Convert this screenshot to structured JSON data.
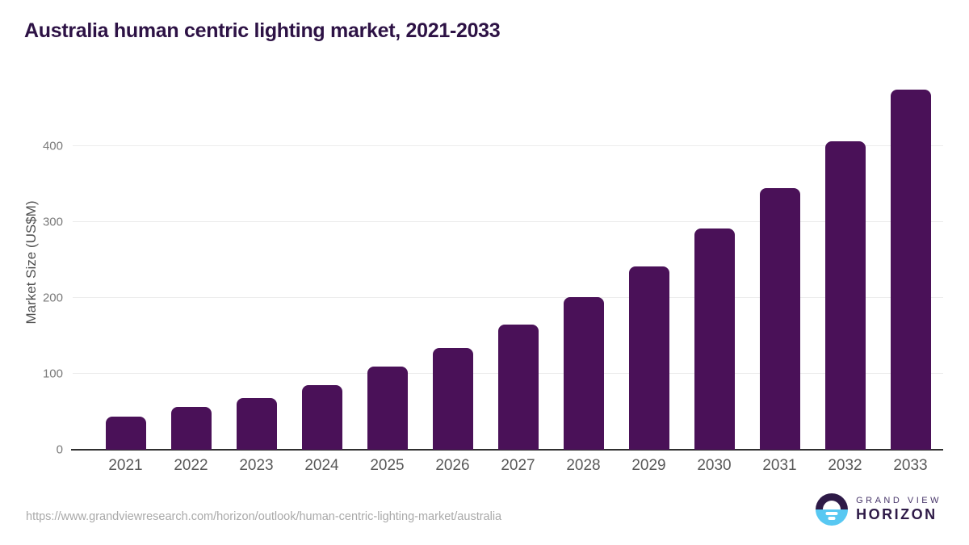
{
  "page": {
    "title": "Australia human centric lighting market, 2021-2033",
    "source_url": "https://www.grandviewresearch.com/horizon/outlook/human-centric-lighting-market/australia"
  },
  "logo": {
    "icon": "horizon-sun-icon",
    "line1": "GRAND VIEW",
    "line2": "HORIZON",
    "icon_top_color": "#2e1a47",
    "icon_bottom_color": "#58c8f2"
  },
  "colors": {
    "bar": "#4a1158",
    "title_text": "#2d1245",
    "gridline": "#ececec",
    "axis_line": "#2f2f2f",
    "y_tick_text": "#7a7a7a",
    "x_tick_text": "#595959",
    "url_text": "#a9a9a9"
  },
  "chart_data": {
    "type": "bar",
    "title": "Australia human centric lighting market, 2021-2033",
    "categories": [
      "2021",
      "2022",
      "2023",
      "2024",
      "2025",
      "2026",
      "2027",
      "2028",
      "2029",
      "2030",
      "2031",
      "2032",
      "2033"
    ],
    "values": [
      44,
      56,
      68,
      85,
      110,
      134,
      165,
      201,
      242,
      291,
      345,
      406,
      474
    ],
    "xlabel": "",
    "ylabel": "Market Size (US$M)",
    "y_ticks": [
      0,
      100,
      200,
      300,
      400
    ],
    "ylim": [
      0,
      475
    ],
    "grid": "horizontal-only",
    "legend": false,
    "bar_color": "#4a1158"
  }
}
